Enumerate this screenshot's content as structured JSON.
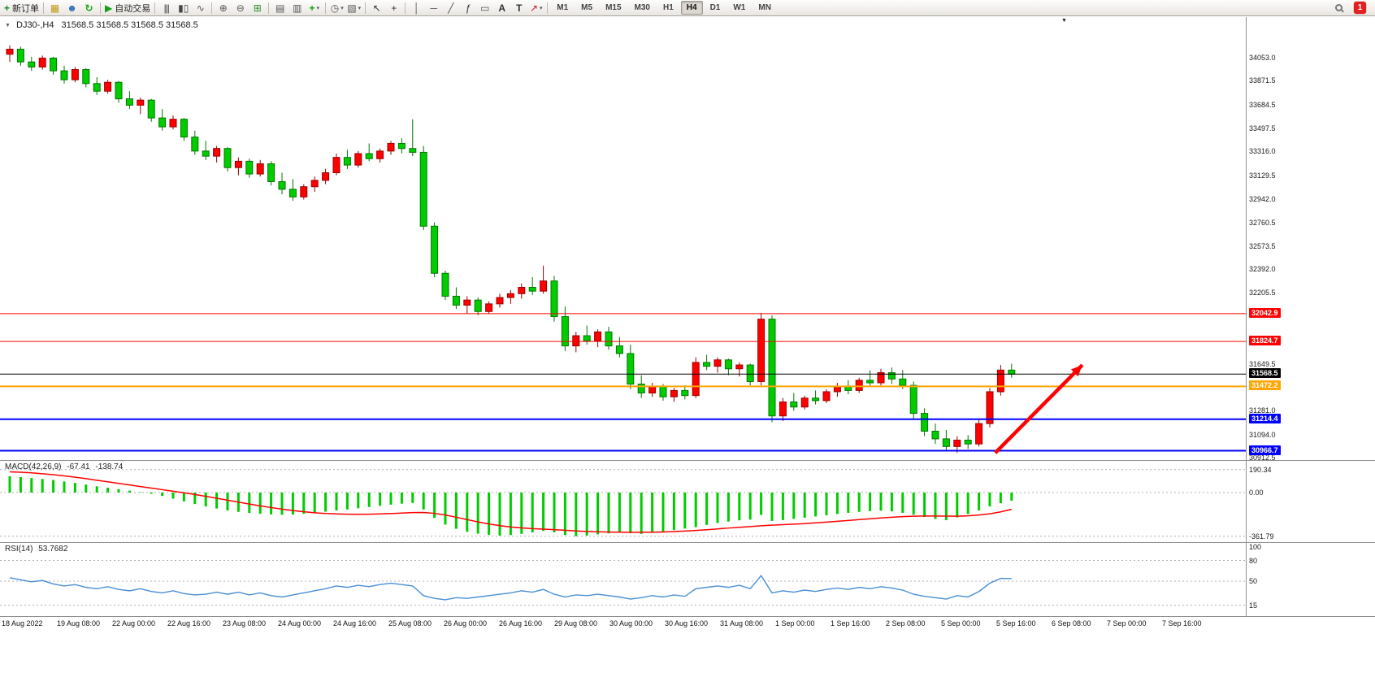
{
  "toolbar": {
    "new_order_label": "新订单",
    "auto_trading_label": "自动交易",
    "timeframes": [
      "M1",
      "M5",
      "M15",
      "M30",
      "H1",
      "H4",
      "D1",
      "W1",
      "MN"
    ],
    "active_timeframe": "H4",
    "notification_count": "1",
    "items": [
      {
        "name": "new-order-button",
        "icon": "new-order-icon",
        "label": "新订单"
      },
      {
        "sep": true
      },
      {
        "name": "charts-button",
        "icon": "chart-icon"
      },
      {
        "name": "community-button",
        "icon": "community-icon"
      },
      {
        "name": "refresh-button",
        "icon": "refresh-icon"
      },
      {
        "sep": true
      },
      {
        "name": "auto-trading-button",
        "icon": "autotrade-icon",
        "label": "自动交易"
      },
      {
        "sep": true
      },
      {
        "name": "bar-chart-button",
        "icon": "bar-chart-icon"
      },
      {
        "name": "candlestick-chart-button",
        "icon": "candlestick-chart-icon"
      },
      {
        "name": "line-chart-button",
        "icon": "line-chart-icon"
      },
      {
        "sep": true
      },
      {
        "name": "zoom-in-button",
        "icon": "zoom-in-icon"
      },
      {
        "name": "zoom-out-button",
        "icon": "zoom-out-icon"
      },
      {
        "name": "tile-windows-button",
        "icon": "tile-windows-icon"
      },
      {
        "sep": true
      },
      {
        "name": "window-list-button",
        "icon": "window-list-icon"
      },
      {
        "name": "cascade-windows-button",
        "icon": "cascade-icon"
      },
      {
        "name": "add-indicator-button",
        "icon": "add-indicator-icon",
        "caret": true
      },
      {
        "sep": true
      },
      {
        "name": "periods-button",
        "icon": "periods-icon",
        "caret": true
      },
      {
        "name": "templates-button",
        "icon": "template-icon",
        "caret": true
      },
      {
        "sep": true
      },
      {
        "name": "cursor-button",
        "icon": "cursor-icon"
      },
      {
        "name": "crosshair-button",
        "icon": "crosshair-icon"
      },
      {
        "sep": true
      },
      {
        "name": "vertical-line-button",
        "icon": "vline-icon"
      },
      {
        "name": "horizontal-line-button",
        "icon": "hline-icon"
      },
      {
        "name": "trendline-button",
        "icon": "trendline-icon"
      },
      {
        "name": "fibonacci-button",
        "icon": "fibonacci-icon"
      },
      {
        "name": "shapes-button",
        "icon": "shapes-icon"
      },
      {
        "name": "text-button",
        "icon": "text-icon"
      },
      {
        "name": "text-label-button",
        "icon": "label-icon"
      },
      {
        "name": "arrows-button",
        "icon": "arrows-icon",
        "caret": true
      },
      {
        "sep": true
      },
      {
        "group": "timeframes"
      }
    ]
  },
  "icons": {
    "new-order-icon": "+",
    "chart-icon": "▦",
    "community-icon": "☻",
    "refresh-icon": "↻",
    "autotrade-icon": "▶",
    "bar-chart-icon": "|||",
    "candlestick-chart-icon": "▮▯",
    "line-chart-icon": "∿",
    "zoom-in-icon": "⊕",
    "zoom-out-icon": "⊖",
    "tile-windows-icon": "⊞",
    "window-list-icon": "▤",
    "cascade-icon": "▥",
    "add-indicator-icon": "+",
    "periods-icon": "◷",
    "template-icon": "▧",
    "cursor-icon": "↖",
    "crosshair-icon": "+",
    "vline-icon": "│",
    "hline-icon": "─",
    "trendline-icon": "╱",
    "fibonacci-icon": "ƒ",
    "shapes-icon": "▭",
    "text-icon": "A",
    "label-icon": "T",
    "arrows-icon": "↗",
    "collapse-icon": "▼",
    "shift-icon": "▼"
  },
  "chart": {
    "symbol_period": "DJ30-,H4",
    "ohlc_text": "31568.5 31568.5 31568.5 31568.5"
  },
  "chart_data": {
    "type": "candlestick",
    "symbol": "DJ30-",
    "timeframe": "H4",
    "colors": {
      "bull": "#ff0000",
      "bull_border": "#990000",
      "bear": "#00cc00",
      "bear_border": "#007700",
      "macd_hist": "#00cc00",
      "macd_signal": "#ff0000",
      "rsi_line": "#4a8fd4",
      "grid": "#b0b0b0"
    },
    "price_ylim": [
      30893.6,
      34365.8
    ],
    "price_ticks": [
      34053.0,
      33871.5,
      33684.5,
      33497.5,
      33316.0,
      33129.5,
      32942.0,
      32760.5,
      32573.5,
      32392.0,
      32205.5,
      31649.5,
      31281.0,
      31094.0,
      30912.5
    ],
    "hlines": [
      {
        "price": 32042.9,
        "label": "32042.9",
        "color": "#ff0000",
        "width": 1
      },
      {
        "price": 31824.7,
        "label": "31824.7",
        "color": "#ff0000",
        "width": 1
      },
      {
        "price": 31568.5,
        "label": "31568.5",
        "color": "#000000",
        "width": 1
      },
      {
        "price": 31472.2,
        "label": "31472.2",
        "color": "#ffa500",
        "width": 2
      },
      {
        "price": 31214.4,
        "label": "31214.4",
        "color": "#0000ff",
        "width": 2
      },
      {
        "price": 30966.7,
        "label": "30966.7",
        "color": "#0000ff",
        "width": 2
      }
    ],
    "candles": [
      [
        34080,
        34150,
        34020,
        34120
      ],
      [
        34120,
        34140,
        33990,
        34020
      ],
      [
        34020,
        34060,
        33950,
        33980
      ],
      [
        33980,
        34070,
        33960,
        34050
      ],
      [
        34050,
        34060,
        33920,
        33950
      ],
      [
        33950,
        33990,
        33850,
        33880
      ],
      [
        33880,
        33980,
        33860,
        33960
      ],
      [
        33960,
        33970,
        33820,
        33850
      ],
      [
        33850,
        33900,
        33760,
        33790
      ],
      [
        33790,
        33880,
        33770,
        33860
      ],
      [
        33860,
        33870,
        33700,
        33730
      ],
      [
        33730,
        33790,
        33650,
        33680
      ],
      [
        33680,
        33740,
        33610,
        33720
      ],
      [
        33720,
        33730,
        33550,
        33580
      ],
      [
        33580,
        33650,
        33480,
        33510
      ],
      [
        33510,
        33600,
        33490,
        33570
      ],
      [
        33570,
        33580,
        33400,
        33430
      ],
      [
        33430,
        33480,
        33290,
        33320
      ],
      [
        33320,
        33400,
        33250,
        33280
      ],
      [
        33280,
        33360,
        33230,
        33340
      ],
      [
        33340,
        33350,
        33160,
        33190
      ],
      [
        33190,
        33270,
        33130,
        33240
      ],
      [
        33240,
        33260,
        33110,
        33140
      ],
      [
        33140,
        33250,
        33120,
        33220
      ],
      [
        33220,
        33240,
        33050,
        33080
      ],
      [
        33080,
        33150,
        32980,
        33020
      ],
      [
        33020,
        33100,
        32930,
        32960
      ],
      [
        32960,
        33060,
        32940,
        33040
      ],
      [
        33040,
        33120,
        33000,
        33090
      ],
      [
        33090,
        33180,
        33060,
        33150
      ],
      [
        33150,
        33300,
        33130,
        33270
      ],
      [
        33270,
        33330,
        33180,
        33210
      ],
      [
        33210,
        33320,
        33190,
        33300
      ],
      [
        33300,
        33380,
        33240,
        33260
      ],
      [
        33260,
        33340,
        33230,
        33320
      ],
      [
        33320,
        33400,
        33290,
        33380
      ],
      [
        33380,
        33420,
        33300,
        33340
      ],
      [
        33340,
        33570,
        33280,
        33310
      ],
      [
        33310,
        33360,
        32700,
        32730
      ],
      [
        32730,
        32760,
        32330,
        32360
      ],
      [
        32360,
        32380,
        32150,
        32180
      ],
      [
        32180,
        32250,
        32080,
        32110
      ],
      [
        32110,
        32180,
        32040,
        32150
      ],
      [
        32150,
        32170,
        32030,
        32060
      ],
      [
        32060,
        32140,
        32040,
        32120
      ],
      [
        32120,
        32200,
        32090,
        32170
      ],
      [
        32170,
        32230,
        32120,
        32200
      ],
      [
        32200,
        32280,
        32160,
        32250
      ],
      [
        32250,
        32330,
        32190,
        32220
      ],
      [
        32220,
        32420,
        32200,
        32300
      ],
      [
        32300,
        32340,
        31980,
        32020
      ],
      [
        32020,
        32100,
        31750,
        31790
      ],
      [
        31790,
        31900,
        31740,
        31870
      ],
      [
        31870,
        31950,
        31800,
        31830
      ],
      [
        31830,
        31920,
        31780,
        31900
      ],
      [
        31900,
        31940,
        31760,
        31790
      ],
      [
        31790,
        31860,
        31700,
        31730
      ],
      [
        31730,
        31800,
        31450,
        31490
      ],
      [
        31490,
        31560,
        31380,
        31420
      ],
      [
        31420,
        31500,
        31390,
        31470
      ],
      [
        31470,
        31490,
        31360,
        31390
      ],
      [
        31390,
        31460,
        31350,
        31440
      ],
      [
        31440,
        31480,
        31370,
        31400
      ],
      [
        31400,
        31700,
        31380,
        31660
      ],
      [
        31660,
        31720,
        31600,
        31630
      ],
      [
        31630,
        31700,
        31580,
        31680
      ],
      [
        31680,
        31690,
        31560,
        31610
      ],
      [
        31610,
        31660,
        31550,
        31640
      ],
      [
        31640,
        31650,
        31480,
        31510
      ],
      [
        31510,
        32050,
        31480,
        32000
      ],
      [
        32000,
        32030,
        31190,
        31240
      ],
      [
        31240,
        31380,
        31200,
        31350
      ],
      [
        31350,
        31420,
        31280,
        31310
      ],
      [
        31310,
        31400,
        31290,
        31380
      ],
      [
        31380,
        31440,
        31330,
        31360
      ],
      [
        31360,
        31450,
        31340,
        31430
      ],
      [
        31430,
        31500,
        31390,
        31470
      ],
      [
        31470,
        31520,
        31410,
        31440
      ],
      [
        31440,
        31540,
        31420,
        31520
      ],
      [
        31520,
        31600,
        31470,
        31500
      ],
      [
        31500,
        31610,
        31480,
        31580
      ],
      [
        31580,
        31620,
        31490,
        31530
      ],
      [
        31530,
        31600,
        31450,
        31480
      ],
      [
        31480,
        31510,
        31220,
        31260
      ],
      [
        31260,
        31300,
        31080,
        31120
      ],
      [
        31120,
        31180,
        31020,
        31060
      ],
      [
        31060,
        31130,
        30960,
        31000
      ],
      [
        31000,
        31080,
        30950,
        31050
      ],
      [
        31050,
        31090,
        30980,
        31020
      ],
      [
        31020,
        31220,
        31000,
        31180
      ],
      [
        31180,
        31460,
        31150,
        31430
      ],
      [
        31430,
        31640,
        31400,
        31600
      ],
      [
        31600,
        31650,
        31540,
        31568.5
      ]
    ],
    "arrow": {
      "from_bar": 90.5,
      "from_price": 30950,
      "to_bar": 98.5,
      "to_price": 31640,
      "color": "#ff0000"
    },
    "macd": {
      "name": "MACD(42,26,9)",
      "value_main": "-67.41",
      "value_signal": "-138.74",
      "ylim": [
        -410.5,
        262.5
      ],
      "axis_ticks": [
        190.34,
        0.0,
        -361.79
      ],
      "histogram": [
        135,
        128,
        120,
        112,
        104,
        92,
        80,
        66,
        52,
        40,
        28,
        16,
        4,
        -10,
        -28,
        -50,
        -74,
        -95,
        -115,
        -132,
        -148,
        -160,
        -169,
        -176,
        -181,
        -184,
        -182,
        -176,
        -168,
        -158,
        -148,
        -140,
        -130,
        -120,
        -110,
        -100,
        -92,
        -86,
        -140,
        -210,
        -265,
        -300,
        -325,
        -340,
        -350,
        -356,
        -352,
        -342,
        -330,
        -318,
        -330,
        -352,
        -362,
        -356,
        -346,
        -338,
        -332,
        -336,
        -342,
        -334,
        -322,
        -310,
        -298,
        -286,
        -268,
        -252,
        -240,
        -230,
        -224,
        -185,
        -235,
        -228,
        -218,
        -208,
        -198,
        -188,
        -178,
        -168,
        -160,
        -154,
        -150,
        -156,
        -168,
        -184,
        -202,
        -218,
        -228,
        -205,
        -178,
        -148,
        -115,
        -88,
        -67.41
      ],
      "signal": [
        172,
        168,
        163,
        156,
        148,
        138,
        127,
        115,
        102,
        89,
        76,
        63,
        50,
        37,
        24,
        11,
        -2,
        -16,
        -31,
        -47,
        -63,
        -79,
        -95,
        -110,
        -124,
        -137,
        -149,
        -159,
        -167,
        -173,
        -177,
        -179,
        -180,
        -179,
        -177,
        -174,
        -170,
        -166,
        -165,
        -172,
        -186,
        -204,
        -224,
        -243,
        -260,
        -274,
        -285,
        -293,
        -299,
        -303,
        -307,
        -312,
        -318,
        -322,
        -325,
        -327,
        -328,
        -329,
        -329,
        -328,
        -326,
        -323,
        -319,
        -314,
        -308,
        -301,
        -294,
        -288,
        -282,
        -275,
        -270,
        -266,
        -262,
        -257,
        -251,
        -245,
        -238,
        -231,
        -224,
        -217,
        -210,
        -204,
        -199,
        -196,
        -194,
        -194,
        -195,
        -196,
        -193,
        -186,
        -176,
        -160,
        -138.74
      ]
    },
    "rsi": {
      "name": "RSI(14)",
      "value": "53.7682",
      "ylim": [
        -0.7,
        105.4
      ],
      "levels": [
        80,
        50,
        15
      ],
      "axis_ticks": [
        100,
        80,
        50,
        15
      ],
      "values": [
        55,
        52,
        49,
        51,
        46,
        43,
        45,
        41,
        39,
        42,
        38,
        36,
        39,
        35,
        33,
        36,
        32,
        30,
        31,
        34,
        31,
        34,
        30,
        33,
        29,
        27,
        30,
        33,
        36,
        39,
        43,
        41,
        44,
        42,
        45,
        47,
        45,
        43,
        29,
        25,
        23,
        26,
        25,
        27,
        29,
        31,
        33,
        36,
        34,
        38,
        31,
        27,
        30,
        29,
        31,
        29,
        27,
        24,
        26,
        29,
        27,
        30,
        28,
        39,
        41,
        43,
        41,
        44,
        39,
        58,
        33,
        36,
        34,
        37,
        35,
        38,
        40,
        38,
        41,
        39,
        42,
        40,
        37,
        31,
        28,
        26,
        24,
        29,
        27,
        35,
        47,
        54,
        53.77
      ]
    },
    "time_labels": [
      "18 Aug 2022",
      "19 Aug 08:00",
      "22 Aug 00:00",
      "22 Aug 16:00",
      "23 Aug 08:00",
      "24 Aug 00:00",
      "24 Aug 16:00",
      "25 Aug 08:00",
      "26 Aug 00:00",
      "26 Aug 16:00",
      "29 Aug 08:00",
      "30 Aug 00:00",
      "30 Aug 16:00",
      "31 Aug 08:00",
      "1 Sep 00:00",
      "1 Sep 16:00",
      "2 Sep 08:00",
      "5 Sep 00:00",
      "5 Sep 16:00",
      "6 Sep 08:00",
      "7 Sep 00:00",
      "7 Sep 16:00"
    ]
  }
}
